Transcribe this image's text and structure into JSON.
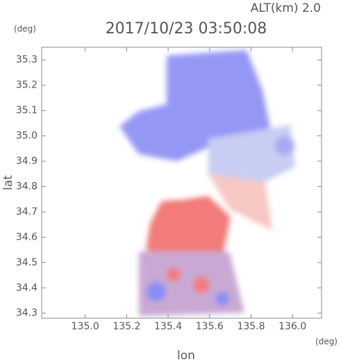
{
  "chart_data": {
    "type": "radar-map",
    "title": "2017/10/23 03:50:08",
    "subtitle": "ALT(km) 2.0",
    "x_label": "lon",
    "y_label": "lat",
    "x_unit": "(deg)",
    "y_unit": "(deg)",
    "xlim": [
      134.79,
      136.14
    ],
    "ylim": [
      34.28,
      35.35
    ],
    "xticks": [
      {
        "value": 135,
        "label": "135.0"
      },
      135.2,
      135.4,
      135.6,
      135.8,
      {
        "value": 136,
        "label": "136.0"
      }
    ],
    "yticks": [
      34.3,
      34.4,
      34.5,
      34.6,
      34.7,
      34.8,
      34.9,
      {
        "value": 35,
        "label": "35.0"
      },
      35.1,
      35.2,
      35.3
    ],
    "grid": false
  }
}
